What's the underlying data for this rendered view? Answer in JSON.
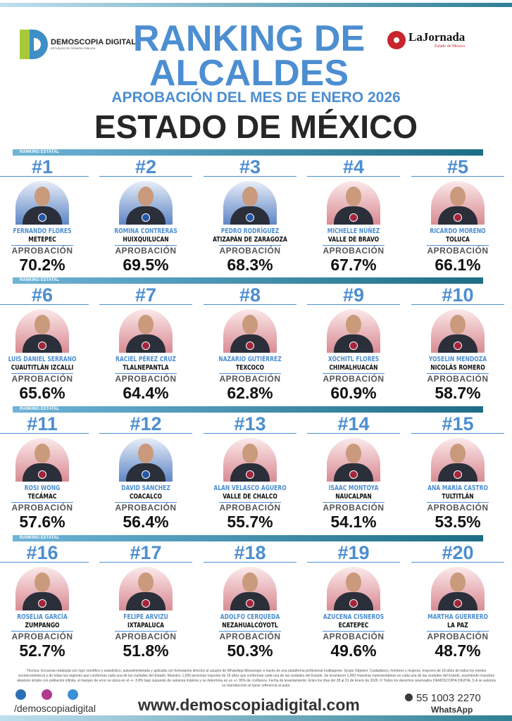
{
  "header": {
    "logo_left": "DEMOSCOPIA DIGITAL",
    "logo_left_sub": "ESTUDIOS DE OPINIÓN PÚBLICA",
    "logo_right": "LaJornada",
    "logo_right_sub": "Estado de México",
    "title_1": "RANKING DE",
    "title_2": "ALCALDES",
    "subtitle": "APROBACIÓN DEL MES DE ENERO 2026",
    "region": "ESTADO DE MÉXICO"
  },
  "section_label": "RANKING ESTATAL",
  "approval_label": "APROBACIÓN",
  "colors": {
    "accent": "#4c8ed1",
    "pan": "#2456a6",
    "morena": "#a4243b"
  },
  "ranking": [
    {
      "rank": "#1",
      "name": "FERNANDO FLORES",
      "city": "METEPEC",
      "approval": "70.2%",
      "party": "pan"
    },
    {
      "rank": "#2",
      "name": "ROMINA CONTRERAS",
      "city": "HUIXQUILUCAN",
      "approval": "69.5%",
      "party": "pan"
    },
    {
      "rank": "#3",
      "name": "PEDRO RODRÍGUEZ",
      "city": "ATIZAPÁN DE ZARAGOZA",
      "approval": "68.3%",
      "party": "pan"
    },
    {
      "rank": "#4",
      "name": "MICHELLE NÚÑEZ",
      "city": "VALLE DE BRAVO",
      "approval": "67.7%",
      "party": "morena"
    },
    {
      "rank": "#5",
      "name": "RICARDO MORENO",
      "city": "TOLUCA",
      "approval": "66.1%",
      "party": "morena"
    },
    {
      "rank": "#6",
      "name": "LUIS DANIEL SERRANO",
      "city": "CUAUTITLÁN IZCALLI",
      "approval": "65.6%",
      "party": "morena"
    },
    {
      "rank": "#7",
      "name": "RACIEL PÉREZ CRUZ",
      "city": "TLALNEPANTLA",
      "approval": "64.4%",
      "party": "morena"
    },
    {
      "rank": "#8",
      "name": "NAZARIO GUTIÉRREZ",
      "city": "TEXCOCO",
      "approval": "62.8%",
      "party": "morena"
    },
    {
      "rank": "#9",
      "name": "XÓCHITL FLORES",
      "city": "CHIMALHUACÁN",
      "approval": "60.9%",
      "party": "morena"
    },
    {
      "rank": "#10",
      "name": "YOSELIN MENDOZA",
      "city": "NICOLÁS ROMERO",
      "approval": "58.7%",
      "party": "morena"
    },
    {
      "rank": "#11",
      "name": "ROSI WONG",
      "city": "TECÁMAC",
      "approval": "57.6%",
      "party": "morena"
    },
    {
      "rank": "#12",
      "name": "DAVID SÁNCHEZ",
      "city": "COACALCO",
      "approval": "56.4%",
      "party": "pan"
    },
    {
      "rank": "#13",
      "name": "ALAN VELASCO AGUERO",
      "city": "VALLE DE CHALCO",
      "approval": "55.7%",
      "party": "morena"
    },
    {
      "rank": "#14",
      "name": "ISAAC MONTOYA",
      "city": "NAUCALPAN",
      "approval": "54.1%",
      "party": "morena"
    },
    {
      "rank": "#15",
      "name": "ANA MARÍA CASTRO",
      "city": "TULTITLÁN",
      "approval": "53.5%",
      "party": "morena"
    },
    {
      "rank": "#16",
      "name": "ROSELIA GARCÍA",
      "city": "ZUMPANGO",
      "approval": "52.7%",
      "party": "morena"
    },
    {
      "rank": "#17",
      "name": "FELIPE ARVIZU",
      "city": "IXTAPALUCA",
      "approval": "51.8%",
      "party": "morena"
    },
    {
      "rank": "#18",
      "name": "ADOLFO CERQUEDA",
      "city": "NEZAHUALCÓYOTL",
      "approval": "50.3%",
      "party": "morena"
    },
    {
      "rank": "#19",
      "name": "AZUCENA CISNEROS",
      "city": "ECATEPEC",
      "approval": "49.6%",
      "party": "morena"
    },
    {
      "rank": "#20",
      "name": "MARTHA GUERRERO",
      "city": "LA PAZ",
      "approval": "48.7%",
      "party": "morena"
    }
  ],
  "footer": {
    "methodology": "Técnica: Encuesta realizada con rigor científico y estadístico, autoadministrada y aplicada con formularios directos al usuario de WhatsApp Messenger a través de una plataforma profesional multiagente. Grupo Objetivo: Ciudadanos, hombres y mujeres, mayores de 18 años de todos los niveles socioeconómicos y de todas las regiones que conforman cada una de las ciudades del Estado. Muestra: 1,000 personas mayores de 18 años que conforman cada una de las ciudades del Estado. Se levantaron 1,000 muestras representativas en cada una de las ciudades del Estado, asumiendo muestreo aleatorio simple con población infinita, el margen de error se ubica en el +/- 3.8% bajo supuesto de varianza máxima y se determina en un +/- 95% de confianza. Fecha de levantamiento: Entre los días del 28 al 31 de Enero de 2026. © Todos los derechos reservados DEMOSCOPIA DIGITAL S.A se autoriza su reproducción al hacer referencia al autor.",
    "handle": "/demoscopiadigital",
    "website": "www.demoscopiadigital.com",
    "phone": "55 1003 2270",
    "phone_label": "WhatsApp"
  }
}
